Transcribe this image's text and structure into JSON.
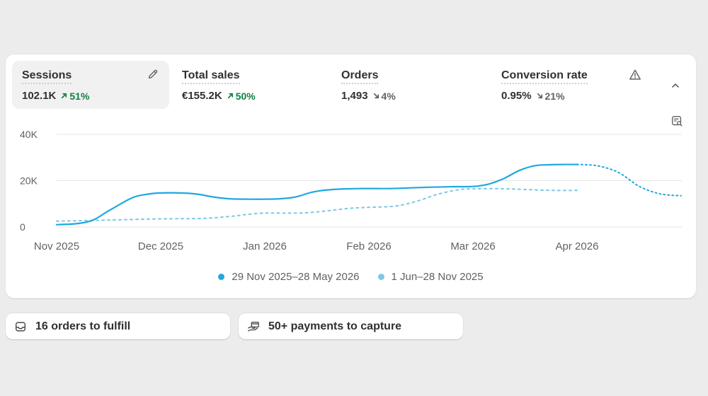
{
  "metrics": [
    {
      "title": "Sessions",
      "value": "102.1K",
      "delta": "51%",
      "direction": "up"
    },
    {
      "title": "Total sales",
      "value": "€155.2K",
      "delta": "50%",
      "direction": "up"
    },
    {
      "title": "Orders",
      "value": "1,493",
      "delta": "4%",
      "direction": "down"
    },
    {
      "title": "Conversion rate",
      "value": "0.95%",
      "delta": "21%",
      "direction": "down"
    }
  ],
  "icons": {
    "edit": "pencil-icon",
    "warning": "warning-triangle-icon",
    "collapse": "chevron-up-icon",
    "inspect": "chart-search-icon",
    "orders": "inbox-icon",
    "payments": "hand-card-icon"
  },
  "colors": {
    "current": "#1fa8e0",
    "previous": "#7cc8e6",
    "up": "#108043",
    "down": "#616161",
    "grid": "#e6e6e6",
    "active_tab_bg": "#f1f1f1"
  },
  "chart_data": {
    "type": "line",
    "y_ticks": [
      "40K",
      "20K",
      "0"
    ],
    "y_tick_values": [
      40000,
      20000,
      0
    ],
    "ylim": [
      0,
      40000
    ],
    "x_ticks": [
      "Nov 2025",
      "Dec 2025",
      "Jan 2026",
      "Feb 2026",
      "Mar 2026",
      "Apr 2026"
    ],
    "grid": true,
    "legend_position": "bottom-center",
    "series": [
      {
        "name": "29 Nov 2025–28 May 2026",
        "style": "solid-then-dotted",
        "color": "#1fa8e0",
        "x": [
          0,
          0.2,
          0.35,
          0.5,
          0.72,
          0.85,
          1.0,
          1.2,
          1.35,
          1.5,
          1.65,
          1.85,
          2.0,
          2.15,
          2.3,
          2.45,
          2.6,
          2.8,
          3.0,
          3.2,
          3.4,
          3.6,
          3.8,
          4.0,
          4.15,
          4.3,
          4.45,
          4.6,
          4.75,
          4.85,
          5.0,
          5.2,
          5.4,
          5.6,
          5.8,
          6.0
        ],
        "y": [
          1000,
          1500,
          3000,
          7000,
          12500,
          14000,
          14700,
          14700,
          14200,
          13000,
          12200,
          12000,
          12000,
          12200,
          13000,
          15000,
          16000,
          16500,
          16600,
          16600,
          16900,
          17200,
          17400,
          17500,
          18500,
          21000,
          24500,
          26500,
          26900,
          27000,
          27000,
          26400,
          23500,
          17500,
          14300,
          13500
        ],
        "projected_from_x": 5.0
      },
      {
        "name": "1 Jun–28 Nov 2025",
        "style": "dashed",
        "color": "#7cc8e6",
        "x": [
          0,
          0.5,
          1.0,
          1.4,
          1.65,
          1.85,
          2.0,
          2.3,
          2.5,
          2.8,
          3.0,
          3.25,
          3.45,
          3.65,
          3.85,
          4.0,
          4.3,
          4.6,
          4.8,
          5.0
        ],
        "y": [
          2500,
          3000,
          3500,
          3700,
          4500,
          5500,
          6000,
          6000,
          6500,
          8000,
          8500,
          9000,
          11000,
          14000,
          16000,
          16500,
          16500,
          16000,
          15800,
          15800
        ]
      }
    ]
  },
  "legend": [
    {
      "label": "29 Nov 2025–28 May 2026",
      "color": "#1fa8e0"
    },
    {
      "label": "1 Jun–28 Nov 2025",
      "color": "#7cc8e6"
    }
  ],
  "tasks": [
    {
      "label": "16 orders to fulfill"
    },
    {
      "label": "50+ payments to capture"
    }
  ]
}
